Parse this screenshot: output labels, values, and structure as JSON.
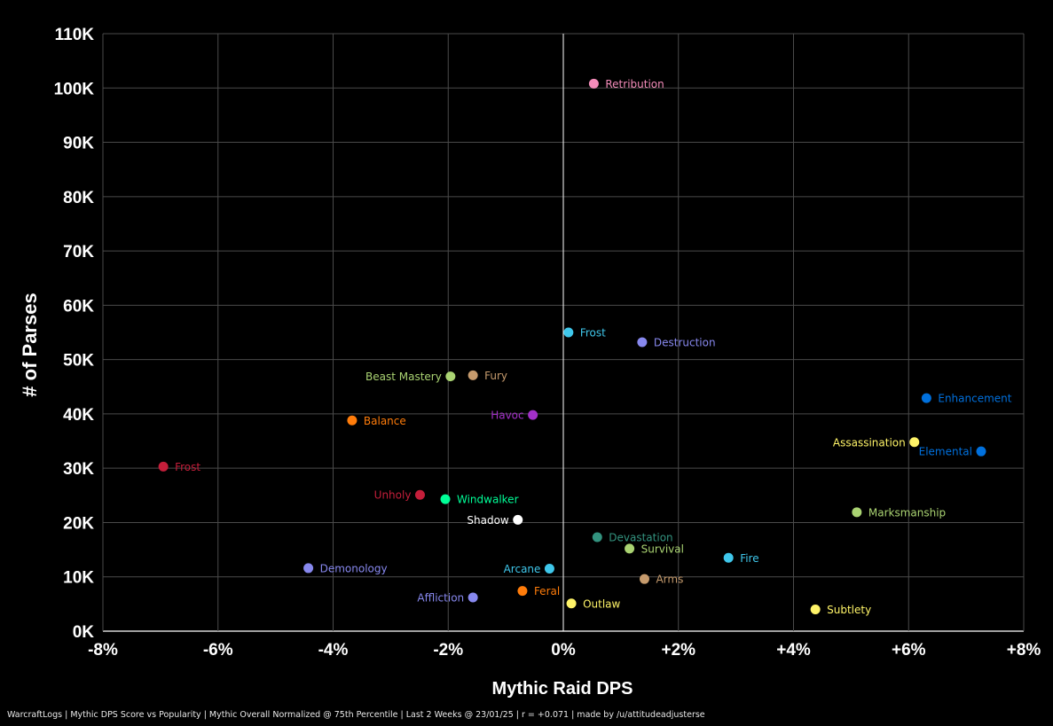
{
  "chart_data": {
    "type": "scatter",
    "xlabel": "Mythic Raid DPS",
    "ylabel": "# of Parses",
    "xlim": [
      -8,
      8
    ],
    "ylim": [
      0,
      110000
    ],
    "x_ticks": [
      -8,
      -6,
      -4,
      -2,
      0,
      2,
      4,
      6,
      8
    ],
    "x_tick_labels": [
      "-8%",
      "-6%",
      "-4%",
      "-2%",
      "0%",
      "+2%",
      "+4%",
      "+6%",
      "+8%"
    ],
    "y_ticks": [
      0,
      10000,
      20000,
      30000,
      40000,
      50000,
      60000,
      70000,
      80000,
      90000,
      100000,
      110000
    ],
    "y_tick_labels": [
      "0K",
      "10K",
      "20K",
      "30K",
      "40K",
      "50K",
      "60K",
      "70K",
      "80K",
      "90K",
      "100K",
      "110K"
    ],
    "grid": true,
    "points": [
      {
        "label": "Retribution",
        "x": 0.53,
        "y": 100800,
        "color": "#f48cba",
        "label_side": "right"
      },
      {
        "label": "Frost",
        "x": 0.09,
        "y": 55000,
        "color": "#3fc7eb",
        "label_side": "right"
      },
      {
        "label": "Destruction",
        "x": 1.37,
        "y": 53200,
        "color": "#8788ee",
        "label_side": "right"
      },
      {
        "label": "Beast Mastery",
        "x": -1.96,
        "y": 46900,
        "color": "#aad372",
        "label_side": "left"
      },
      {
        "label": "Fury",
        "x": -1.57,
        "y": 47100,
        "color": "#c69b6d",
        "label_side": "right"
      },
      {
        "label": "Enhancement",
        "x": 6.31,
        "y": 42900,
        "color": "#0070dd",
        "label_side": "right"
      },
      {
        "label": "Havoc",
        "x": -0.53,
        "y": 39800,
        "color": "#a330c9",
        "label_side": "left"
      },
      {
        "label": "Balance",
        "x": -3.67,
        "y": 38800,
        "color": "#ff7c0a",
        "label_side": "right"
      },
      {
        "label": "Assassination",
        "x": 6.1,
        "y": 34800,
        "color": "#fff468",
        "label_side": "left"
      },
      {
        "label": "Elemental",
        "x": 7.26,
        "y": 33100,
        "color": "#0070dd",
        "label_side": "left"
      },
      {
        "label": "Frost",
        "x": -6.95,
        "y": 30300,
        "color": "#c41e3a",
        "label_side": "right"
      },
      {
        "label": "Unholy",
        "x": -2.49,
        "y": 25100,
        "color": "#c41e3a",
        "label_side": "left"
      },
      {
        "label": "Windwalker",
        "x": -2.05,
        "y": 24300,
        "color": "#00ff98",
        "label_side": "right"
      },
      {
        "label": "Marksmanship",
        "x": 5.1,
        "y": 21900,
        "color": "#aad372",
        "label_side": "right"
      },
      {
        "label": "Shadow",
        "x": -0.79,
        "y": 20500,
        "color": "#ffffff",
        "label_side": "left"
      },
      {
        "label": "Devastation",
        "x": 0.59,
        "y": 17300,
        "color": "#33937f",
        "label_side": "right"
      },
      {
        "label": "Survival",
        "x": 1.15,
        "y": 15200,
        "color": "#aad372",
        "label_side": "right"
      },
      {
        "label": "Fire",
        "x": 2.87,
        "y": 13500,
        "color": "#3fc7eb",
        "label_side": "right"
      },
      {
        "label": "Demonology",
        "x": -4.43,
        "y": 11600,
        "color": "#8788ee",
        "label_side": "right"
      },
      {
        "label": "Arcane",
        "x": -0.24,
        "y": 11500,
        "color": "#3fc7eb",
        "label_side": "left"
      },
      {
        "label": "Arms",
        "x": 1.41,
        "y": 9600,
        "color": "#c69b6d",
        "label_side": "right"
      },
      {
        "label": "Feral",
        "x": -0.71,
        "y": 7400,
        "color": "#ff7c0a",
        "label_side": "right"
      },
      {
        "label": "Affliction",
        "x": -1.57,
        "y": 6200,
        "color": "#8788ee",
        "label_side": "left"
      },
      {
        "label": "Outlaw",
        "x": 0.14,
        "y": 5100,
        "color": "#fff468",
        "label_side": "right"
      },
      {
        "label": "Subtlety",
        "x": 4.38,
        "y": 4000,
        "color": "#fff468",
        "label_side": "right"
      }
    ]
  },
  "footer": "WarcraftLogs | Mythic DPS Score vs Popularity | Mythic Overall Normalized @ 75th Percentile | Last 2 Weeks @ 23/01/25 | r = +0.071 | made by /u/attitudeadjusterse"
}
